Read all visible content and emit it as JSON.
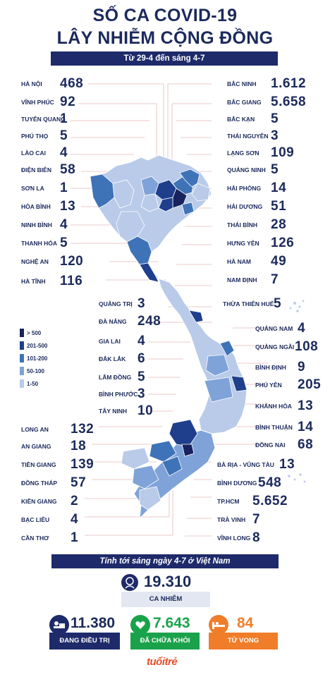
{
  "title_line1": "SỐ CA COVID-19",
  "title_line2": "LÂY NHIỄM CỘNG ĐỒNG",
  "date_range": "Từ 29-4 đến sáng 4-7",
  "colors": {
    "navy": "#1e2a6a",
    "darkest": "#17225e",
    "dark": "#1f3f8c",
    "mid": "#3f73b8",
    "light": "#7fa3d8",
    "lightest": "#b9cbe9",
    "green": "#1aa24b",
    "orange": "#f07d2a"
  },
  "left_provinces": [
    {
      "name": "Hà Nội",
      "count": "468"
    },
    {
      "name": "Vĩnh Phúc",
      "count": "92"
    },
    {
      "name": "Tuyên Quang",
      "count": "1"
    },
    {
      "name": "Phú Thọ",
      "count": "5"
    },
    {
      "name": "Lào Cai",
      "count": "4"
    },
    {
      "name": "Điện Biên",
      "count": "58"
    },
    {
      "name": "Sơn La",
      "count": "1"
    },
    {
      "name": "Hòa Bình",
      "count": "13"
    },
    {
      "name": "Ninh Bình",
      "count": "4"
    },
    {
      "name": "Thanh Hóa",
      "count": "5"
    },
    {
      "name": "Nghệ An",
      "count": "120"
    },
    {
      "name": "Hà Tĩnh",
      "count": "116"
    }
  ],
  "right_provinces": [
    {
      "name": "Bắc Ninh",
      "count": "1.612"
    },
    {
      "name": "Bắc Giang",
      "count": "5.658"
    },
    {
      "name": "Bắc Kạn",
      "count": "5"
    },
    {
      "name": "Thái Nguyên",
      "count": "3"
    },
    {
      "name": "Lạng Sơn",
      "count": "109"
    },
    {
      "name": "Quảng Ninh",
      "count": "5"
    },
    {
      "name": "Hải Phòng",
      "count": "14"
    },
    {
      "name": "Hải Dương",
      "count": "51"
    },
    {
      "name": "Thái Bình",
      "count": "28"
    },
    {
      "name": "Hưng Yên",
      "count": "126"
    },
    {
      "name": "Hà Nam",
      "count": "49"
    },
    {
      "name": "Nam Định",
      "count": "7"
    }
  ],
  "center_left_provinces": [
    {
      "name": "Quảng Trị",
      "count": "3"
    },
    {
      "name": "Đà Nẵng",
      "count": "248"
    },
    {
      "name": "Gia Lai",
      "count": "4"
    },
    {
      "name": "Đắk Lắk",
      "count": "6"
    },
    {
      "name": "Lâm Đồng",
      "count": "5"
    },
    {
      "name": "Bình Phước",
      "count": "3"
    },
    {
      "name": "Tây Ninh",
      "count": "10"
    }
  ],
  "center_right_provinces": [
    {
      "name": "Thừa Thiên Huế",
      "count": "5"
    },
    {
      "name": "Quảng Nam",
      "count": "4"
    },
    {
      "name": "Quảng Ngãi",
      "count": "108"
    },
    {
      "name": "Bình Định",
      "count": "9"
    },
    {
      "name": "Phú Yên",
      "count": "205"
    },
    {
      "name": "Khánh Hòa",
      "count": "13"
    },
    {
      "name": "Bình Thuận",
      "count": "14"
    },
    {
      "name": "Đồng Nai",
      "count": "68"
    }
  ],
  "south_left_provinces": [
    {
      "name": "Long An",
      "count": "132"
    },
    {
      "name": "An Giang",
      "count": "18"
    },
    {
      "name": "Tiền Giang",
      "count": "139"
    },
    {
      "name": "Đồng Tháp",
      "count": "57"
    },
    {
      "name": "Kiên Giang",
      "count": "2"
    },
    {
      "name": "Bạc Liêu",
      "count": "4"
    },
    {
      "name": "Cần Thơ",
      "count": "1"
    }
  ],
  "south_right_provinces": [
    {
      "name": "Bà Rịa - Vũng Tàu",
      "count": "13"
    },
    {
      "name": "Bình Dương",
      "count": "548"
    },
    {
      "name": "TP.HCM",
      "count": "5.652"
    },
    {
      "name": "Trà Vinh",
      "count": "7"
    },
    {
      "name": "Vĩnh Long",
      "count": "8"
    }
  ],
  "legend": [
    {
      "label": "> 500",
      "color": "#17225e"
    },
    {
      "label": "201-500",
      "color": "#1f3f8c"
    },
    {
      "label": "101-200",
      "color": "#3f73b8"
    },
    {
      "label": "50-100",
      "color": "#7fa3d8"
    },
    {
      "label": "1-50",
      "color": "#b9cbe9"
    }
  ],
  "summary_title": "Tính tới sáng ngày 4-7 ở Việt Nam",
  "total": {
    "value": "19.310",
    "label": "CA NHIỄM"
  },
  "treating": {
    "value": "11.380",
    "label": "ĐANG ĐIỀU TRỊ"
  },
  "recovered": {
    "value": "7.643",
    "label": "ĐÃ CHỮA KHỎI"
  },
  "deaths": {
    "value": "84",
    "label": "TỬ VONG"
  },
  "logo_text": "tuổitrẻ"
}
